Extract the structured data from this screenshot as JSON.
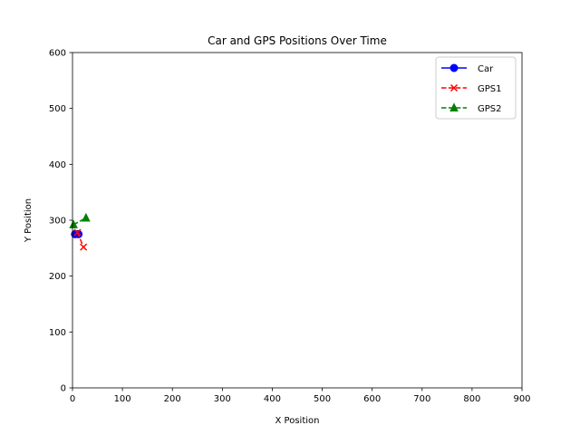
{
  "chart_data": {
    "type": "line",
    "title": "Car and GPS Positions Over Time",
    "xlabel": "X Position",
    "ylabel": "Y Position",
    "xlim": [
      0,
      900
    ],
    "ylim": [
      0,
      600
    ],
    "xticks": [
      0,
      100,
      200,
      300,
      400,
      500,
      600,
      700,
      800,
      900
    ],
    "yticks": [
      0,
      100,
      200,
      300,
      400,
      500,
      600
    ],
    "grid": false,
    "legend_position": "top-right",
    "series": [
      {
        "name": "Car",
        "color": "#0000ff",
        "marker": "circle",
        "linestyle": "solid",
        "points": [
          [
            5,
            275
          ],
          [
            12,
            275
          ]
        ]
      },
      {
        "name": "GPS1",
        "color": "#ff0000",
        "marker": "x",
        "linestyle": "dashed",
        "points": [
          [
            10,
            278
          ],
          [
            22,
            252
          ]
        ]
      },
      {
        "name": "GPS2",
        "color": "#008000",
        "marker": "triangle",
        "linestyle": "dashed",
        "points": [
          [
            2,
            292
          ],
          [
            27,
            304
          ]
        ]
      }
    ]
  }
}
